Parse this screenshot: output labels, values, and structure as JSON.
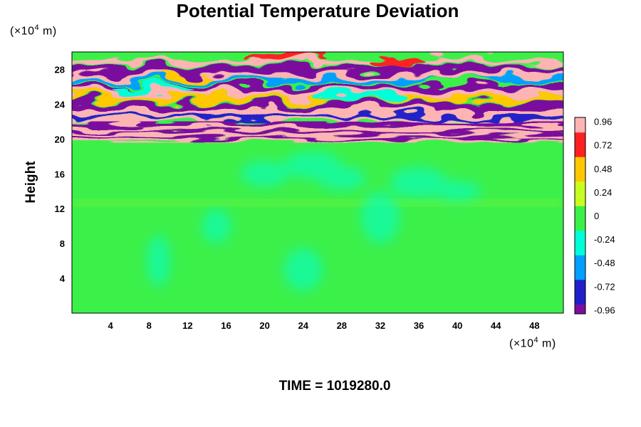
{
  "chart_data": {
    "type": "heatmap",
    "title": "Potential Temperature Deviation",
    "ylabel": "Height",
    "y_unit": {
      "prefix": "(×10",
      "exponent": "4",
      "suffix": " m)"
    },
    "x_unit": {
      "prefix": "(×10",
      "exponent": "4",
      "suffix": " m)"
    },
    "xlim": [
      0,
      51
    ],
    "ylim": [
      0,
      30
    ],
    "x_ticks": [
      4,
      8,
      12,
      16,
      20,
      24,
      28,
      32,
      36,
      40,
      44,
      48
    ],
    "y_ticks": [
      4,
      8,
      12,
      16,
      20,
      24,
      28
    ],
    "colorbar": {
      "min": -1.0,
      "max": 1.0,
      "tick_values": [
        -0.96,
        -0.72,
        -0.48,
        -0.24,
        0,
        0.24,
        0.48,
        0.72,
        0.96
      ],
      "tick_labels": [
        "-0.96",
        "-0.72",
        "-0.48",
        "-0.24",
        "0",
        "0.24",
        "0.48",
        "0.72",
        "0.96"
      ],
      "colors": [
        "#7a0f9e",
        "#2020c8",
        "#00a0ff",
        "#00ffd8",
        "#3cf04a",
        "#c8ff20",
        "#ffc800",
        "#ff2020",
        "#ffb4b4"
      ]
    },
    "fields": [
      {
        "region": "lower troposphere (0–12)",
        "dominant_value": 0.0,
        "note": "green, weak cyan eddies"
      },
      {
        "region": "thin band near 12–13",
        "dominant_value": 0.15
      },
      {
        "region": "band 19.5–22",
        "values": [
          -0.96,
          0.96
        ],
        "note": "alternating purple / pink layers"
      },
      {
        "region": "upper layer 22–30",
        "values": [
          -0.96,
          -0.5,
          0.0,
          0.6,
          0.96
        ],
        "note": "wavy mixed pattern"
      }
    ],
    "grid": false,
    "legend": "right colorbar"
  },
  "footer": {
    "time_label": "TIME = 1019280.0"
  }
}
